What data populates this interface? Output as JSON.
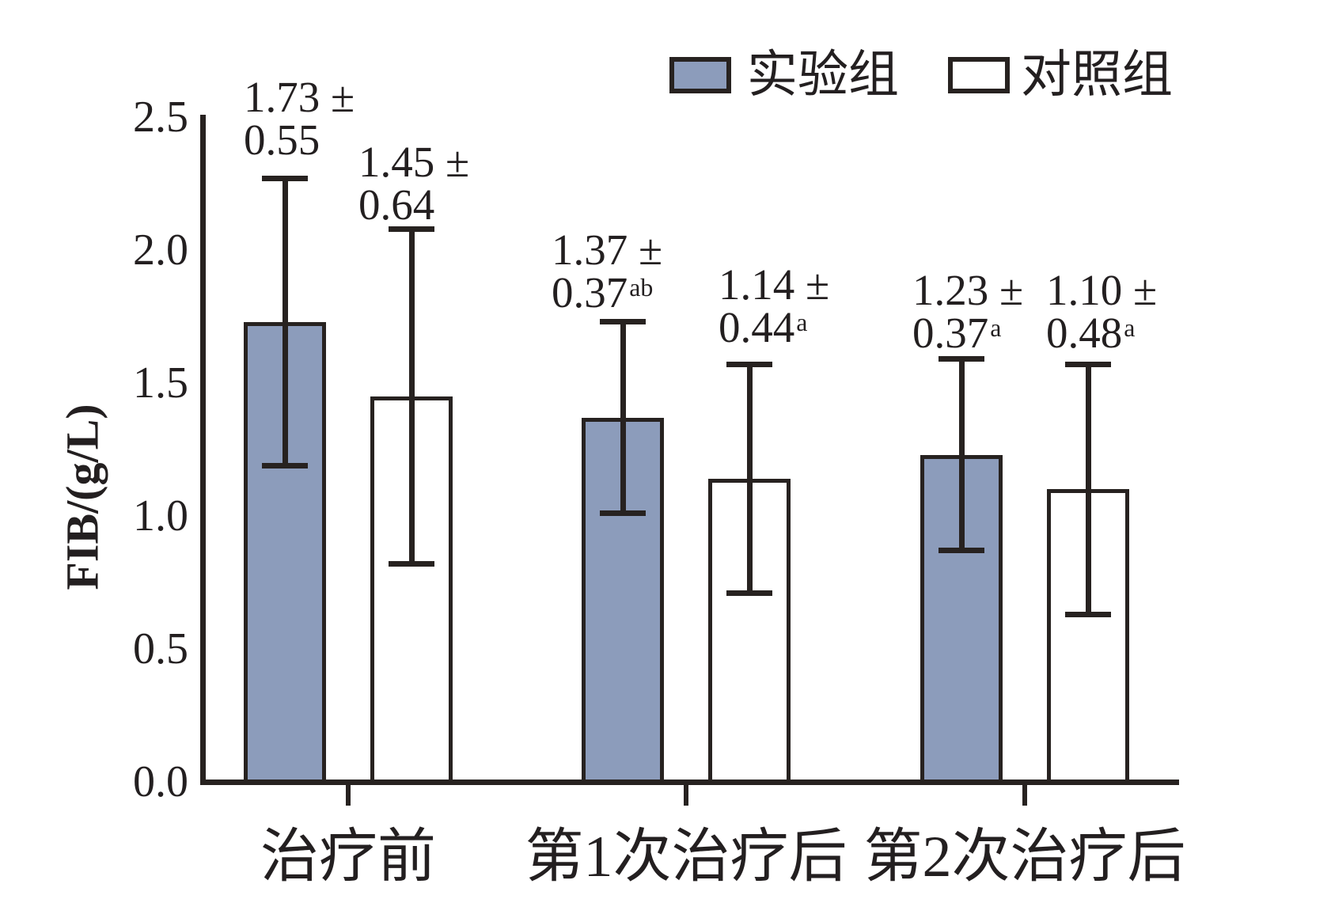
{
  "colors": {
    "ink": "#272220",
    "text": "#231F20",
    "experimental_fill": "#8C9CBB",
    "control_fill": "#FFFFFF",
    "background": "#FFFFFF"
  },
  "chart_data": {
    "type": "bar",
    "title": "",
    "xlabel": "",
    "ylabel": "FIB/(g/L)",
    "categories": [
      "治疗前",
      "第1次治疗后",
      "第2次治疗后"
    ],
    "y_ticks": [
      0.0,
      0.5,
      1.0,
      1.5,
      2.0,
      2.5
    ],
    "ylim": [
      0,
      2.5
    ],
    "grid": false,
    "legend_position": "top",
    "error_bars": "mean ± SD, capped whiskers both directions",
    "value_label_format": "{mean} ±\n{sd}{superscript}",
    "series": [
      {
        "name": "实验组",
        "fill": "#8C9CBB",
        "points": [
          {
            "category": "治疗前",
            "mean": 1.73,
            "sd": 0.55,
            "superscript": ""
          },
          {
            "category": "第1次治疗后",
            "mean": 1.37,
            "sd": 0.37,
            "superscript": "ab"
          },
          {
            "category": "第2次治疗后",
            "mean": 1.23,
            "sd": 0.37,
            "superscript": "a"
          }
        ]
      },
      {
        "name": "对照组",
        "fill": "#FFFFFF",
        "points": [
          {
            "category": "治疗前",
            "mean": 1.45,
            "sd": 0.64,
            "superscript": ""
          },
          {
            "category": "第1次治疗后",
            "mean": 1.14,
            "sd": 0.44,
            "superscript": "a"
          },
          {
            "category": "第2次治疗后",
            "mean": 1.1,
            "sd": 0.48,
            "superscript": "a"
          }
        ]
      }
    ]
  }
}
